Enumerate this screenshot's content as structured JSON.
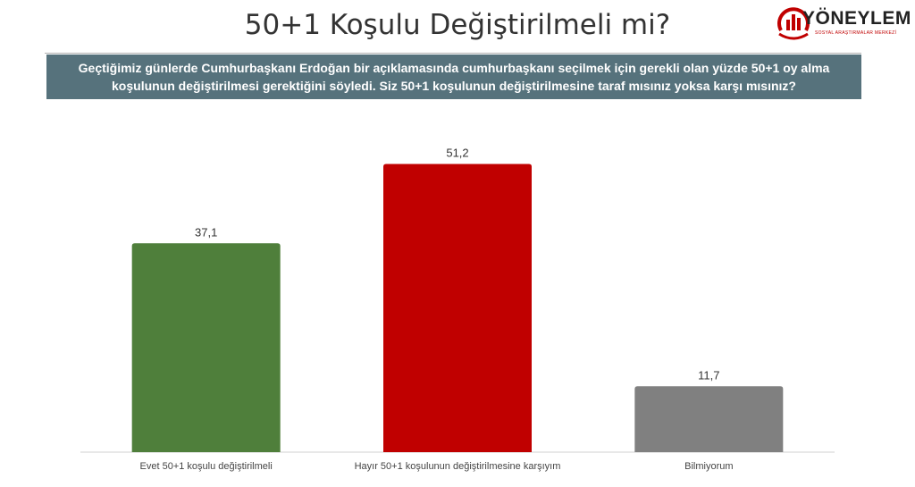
{
  "header": {
    "title": "50+1 Koşulu Değiştirilmeli mi?",
    "question_line1": "Geçtiğimiz günlerde Cumhurbaşkanı Erdoğan bir açıklamasında cumhurbaşkanı seçilmek için gerekli olan yüzde 50+1 oy alma",
    "question_line2": "koşulunun değiştirilmesi gerektiğini söyledi. Siz 50+1 koşulunun değiştirilmesine taraf mısınız yoksa karşı mısınız?"
  },
  "logo": {
    "name": "YÖNEYLEM",
    "subtitle": "SOSYAL ARAŞTIRMALAR MERKEZİ",
    "color": "#c00000"
  },
  "chart_data": {
    "type": "bar",
    "categories": [
      "Evet 50+1 koşulu değiştirilmeli",
      "Hayır 50+1 koşulunun değiştirilmesine karşıyım",
      "Bilmiyorum"
    ],
    "values": [
      37.1,
      51.2,
      11.7
    ],
    "value_labels": [
      "37,1",
      "51,2",
      "11,7"
    ],
    "colors": [
      "#4f7f3b",
      "#c00000",
      "#808080"
    ],
    "title": "",
    "xlabel": "",
    "ylabel": "",
    "ylim": [
      0,
      60
    ],
    "grid": false,
    "legend": "none"
  }
}
